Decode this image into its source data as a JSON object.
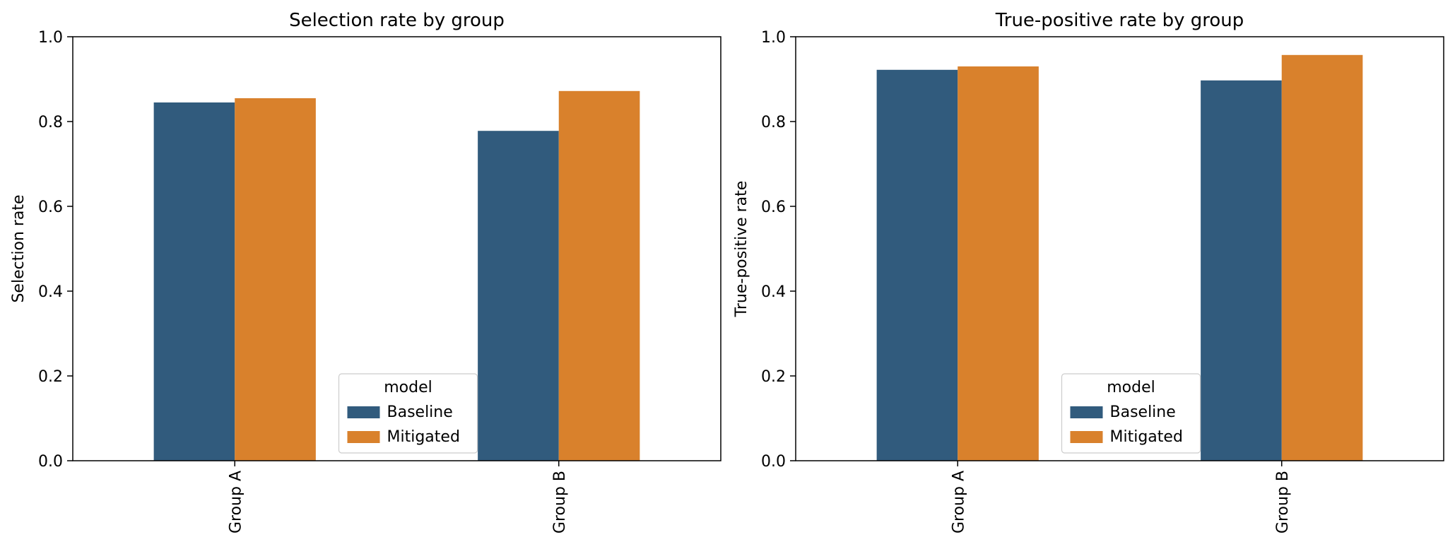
{
  "chart_data": [
    {
      "type": "bar",
      "title": "Selection rate by group",
      "xlabel": "",
      "ylabel": "Selection rate",
      "categories": [
        "Group A",
        "Group B"
      ],
      "series": [
        {
          "name": "Baseline",
          "values": [
            0.845,
            0.778
          ],
          "color": "#315b7d"
        },
        {
          "name": "Mitigated",
          "values": [
            0.855,
            0.872
          ],
          "color": "#d9812c"
        }
      ],
      "ylim": [
        0,
        1.0
      ],
      "yticks": [
        "0.0",
        "0.2",
        "0.4",
        "0.6",
        "0.8",
        "1.0"
      ],
      "grid": false,
      "legend": {
        "title": "model",
        "placement": "lower-center"
      }
    },
    {
      "type": "bar",
      "title": "True-positive rate by group",
      "xlabel": "",
      "ylabel": "True-positive rate",
      "categories": [
        "Group A",
        "Group B"
      ],
      "series": [
        {
          "name": "Baseline",
          "values": [
            0.922,
            0.897
          ],
          "color": "#315b7d"
        },
        {
          "name": "Mitigated",
          "values": [
            0.93,
            0.957
          ],
          "color": "#d9812c"
        }
      ],
      "ylim": [
        0,
        1.0
      ],
      "yticks": [
        "0.0",
        "0.2",
        "0.4",
        "0.6",
        "0.8",
        "1.0"
      ],
      "grid": false,
      "legend": {
        "title": "model",
        "placement": "lower-center"
      }
    }
  ]
}
